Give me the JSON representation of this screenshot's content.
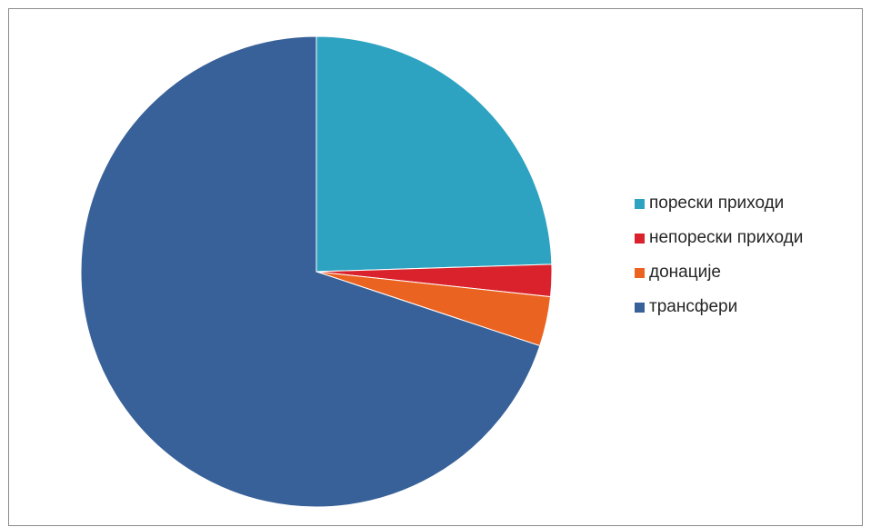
{
  "chart_data": {
    "type": "pie",
    "title": "",
    "start_angle_deg": 0,
    "direction": "clockwise",
    "legend_position": "right",
    "slices": [
      {
        "label": "порески приходи",
        "value": 24.5,
        "color": "#2ea3c1"
      },
      {
        "label": "непорески приходи",
        "value": 2.2,
        "color": "#d9222c"
      },
      {
        "label": "донације",
        "value": 3.4,
        "color": "#eb6320"
      },
      {
        "label": "трансфери",
        "value": 69.9,
        "color": "#386199"
      }
    ]
  }
}
